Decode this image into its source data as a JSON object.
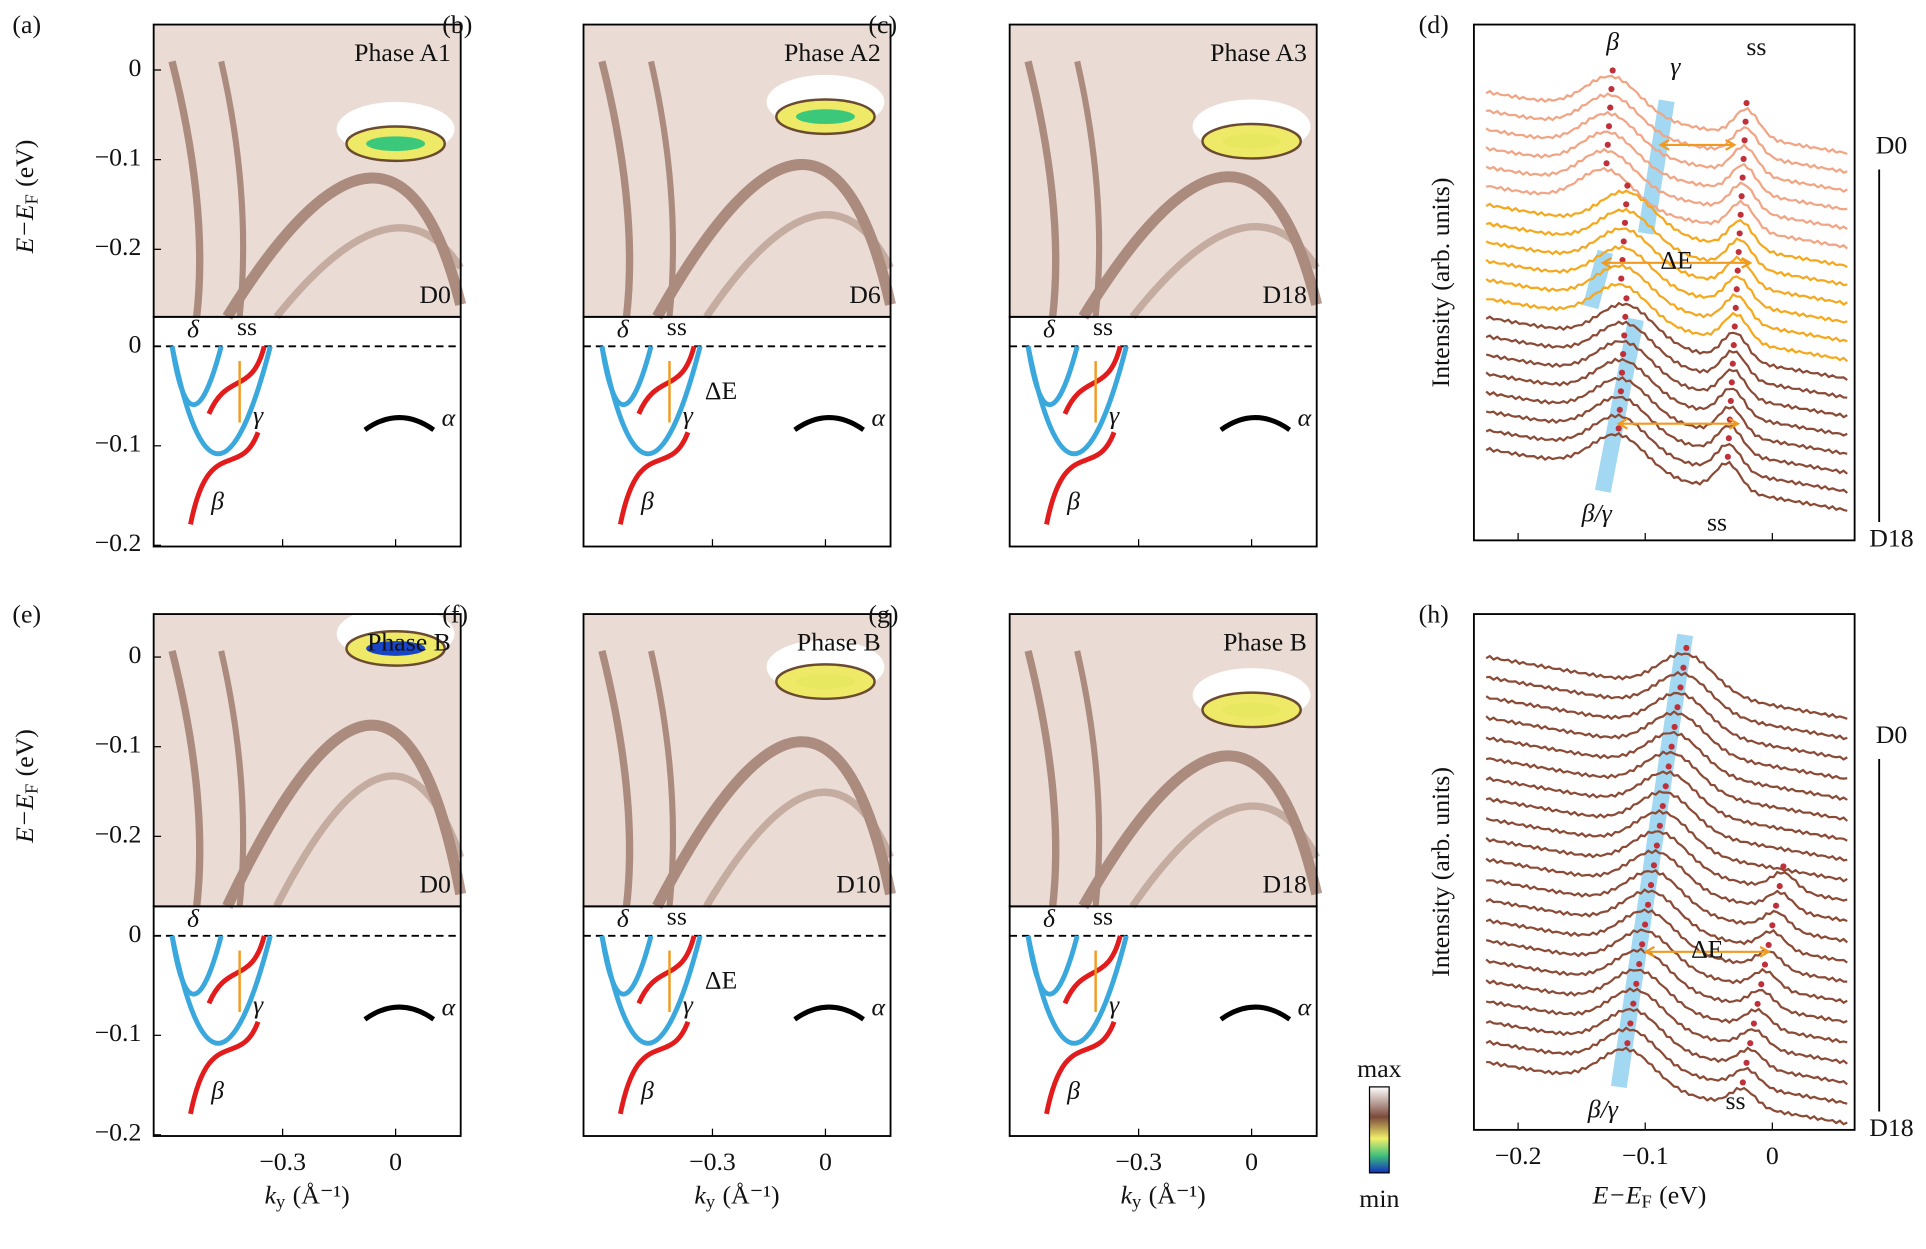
{
  "panels": [
    {
      "label": "(a)",
      "phase": "Phase A1",
      "dose": "D0",
      "schematic": {
        "delta": "δ",
        "ss": "ss",
        "gamma": "γ",
        "beta": "β",
        "alpha": "α"
      }
    },
    {
      "label": "(b)",
      "phase": "Phase A2",
      "dose": "D6",
      "schematic": {
        "delta": "δ",
        "ss": "ss",
        "gamma": "γ",
        "beta": "β",
        "alpha": "α",
        "dE": "ΔE"
      }
    },
    {
      "label": "(c)",
      "phase": "Phase A3",
      "dose": "D18",
      "schematic": {
        "delta": "δ",
        "ss": "ss",
        "gamma": "γ",
        "beta": "β",
        "alpha": "α"
      }
    },
    {
      "label": "(e)",
      "phase": "Phase B",
      "dose": "D0",
      "schematic": {
        "delta": "δ",
        "gamma": "γ",
        "beta": "β",
        "alpha": "α"
      }
    },
    {
      "label": "(f)",
      "phase": "Phase B",
      "dose": "D10",
      "schematic": {
        "delta": "δ",
        "ss": "ss",
        "gamma": "γ",
        "beta": "β",
        "alpha": "α",
        "dE": "ΔE"
      }
    },
    {
      "label": "(g)",
      "phase": "Phase B",
      "dose": "D18",
      "schematic": {
        "delta": "δ",
        "ss": "ss",
        "gamma": "γ",
        "beta": "β",
        "alpha": "α"
      }
    }
  ],
  "axes": {
    "y_label": {
      "main": "E−E",
      "sub": "F",
      "unit": "(eV)"
    },
    "x_label": {
      "main": "k",
      "sub": "y",
      "unit": "(Å⁻¹)"
    },
    "yticks_image": [
      "0",
      "−0.1",
      "−0.2"
    ],
    "yticks_schematic": [
      "0",
      "−0.1",
      "−0.2"
    ],
    "xticks": [
      "−0.3",
      "0"
    ]
  },
  "colorbar": {
    "max": "max",
    "min": "min"
  },
  "edc": [
    {
      "label": "(d)",
      "y_label": "Intensity (arb. units)",
      "start": "D0",
      "end": "D18",
      "annotations": {
        "beta": "β",
        "gamma": "γ",
        "ss_top": "ss",
        "dE": "ΔE",
        "beta_gamma": "β/γ",
        "ss_bottom": "ss"
      }
    },
    {
      "label": "(h)",
      "y_label": "Intensity (arb. units)",
      "start": "D0",
      "end": "D18",
      "annotations": {
        "dE": "ΔE",
        "beta_gamma": "β/γ",
        "ss_bottom": "ss"
      }
    }
  ],
  "edc_axis": {
    "x_label": {
      "main": "E−E",
      "sub": "F",
      "unit": "(eV)"
    },
    "xticks": [
      "−0.2",
      "−0.1",
      "0"
    ]
  }
}
